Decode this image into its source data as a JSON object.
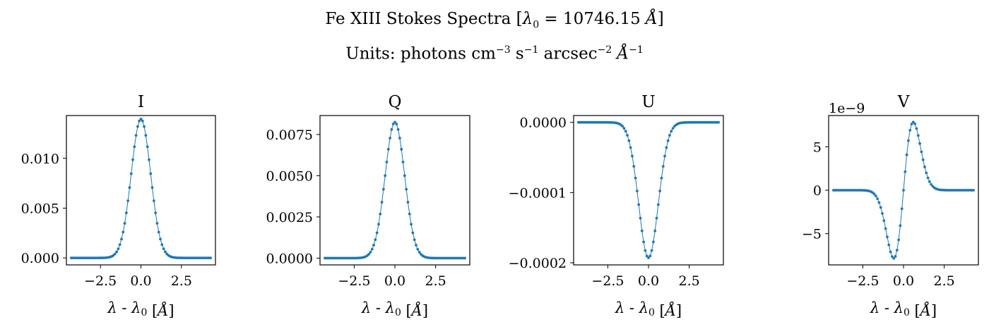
{
  "suptitle": {
    "line1_prefix": "Fe XIII Stokes Spectra  [",
    "lambda": "λ",
    "sub0": "0",
    "line1_mid": " = 10746.15 ",
    "angstrom": "Å",
    "line1_suffix": "]",
    "line2_prefix": "Units:  photons cm",
    "exp_m3": "−3",
    "s": " s",
    "exp_m1": "−1",
    "arcsec": " arcsec",
    "exp_m2": "−2",
    "ang2": " Å",
    "exp_m1b": "−1"
  },
  "colors": {
    "series": "#1f77b4",
    "axes": "#000000"
  },
  "chart_data": [
    {
      "type": "line",
      "title": "I",
      "xlabel": "λ - λ0 [Å]",
      "xlim": [
        -4.6,
        4.6
      ],
      "ylim": [
        -0.0007,
        0.0143
      ],
      "xticks": [
        -2.5,
        0.0,
        2.5
      ],
      "xtick_labels": [
        "−2.5",
        "0.0",
        "2.5"
      ],
      "yticks": [
        0.0,
        0.005,
        0.01
      ],
      "ytick_labels": [
        "0.000",
        "0.005",
        "0.010"
      ],
      "offset_text": "",
      "x_range": [
        -4.3,
        4.3
      ],
      "n_points": 87,
      "profile": {
        "shape": "gaussian",
        "amplitude": 0.01395,
        "center": 0.0,
        "sigma": 0.6
      }
    },
    {
      "type": "line",
      "title": "Q",
      "xlabel": "λ - λ0 [Å]",
      "xlim": [
        -4.6,
        4.6
      ],
      "ylim": [
        -0.00041,
        0.00865
      ],
      "xticks": [
        -2.5,
        0.0,
        2.5
      ],
      "xtick_labels": [
        "−2.5",
        "0.0",
        "2.5"
      ],
      "yticks": [
        0.0,
        0.0025,
        0.005,
        0.0075
      ],
      "ytick_labels": [
        "0.0000",
        "0.0025",
        "0.0050",
        "0.0075"
      ],
      "offset_text": "",
      "x_range": [
        -4.3,
        4.3
      ],
      "n_points": 87,
      "profile": {
        "shape": "gaussian",
        "amplitude": 0.00825,
        "center": 0.0,
        "sigma": 0.6
      }
    },
    {
      "type": "line",
      "title": "U",
      "xlabel": "λ - λ0 [Å]",
      "xlim": [
        -4.6,
        4.6
      ],
      "ylim": [
        -0.000203,
        9.7e-06
      ],
      "xticks": [
        -2.5,
        0.0,
        2.5
      ],
      "xtick_labels": [
        "−2.5",
        "0.0",
        "2.5"
      ],
      "yticks": [
        0.0,
        -0.0001,
        -0.0002
      ],
      "ytick_labels": [
        "0.0000",
        "−0.0001",
        "−0.0002"
      ],
      "offset_text": "",
      "x_range": [
        -4.3,
        4.3
      ],
      "n_points": 87,
      "profile": {
        "shape": "gaussian",
        "amplitude": -0.000193,
        "center": 0.0,
        "sigma": 0.6
      }
    },
    {
      "type": "line",
      "title": "V",
      "xlabel": "λ - λ0 [Å]",
      "xlim": [
        -4.6,
        4.6
      ],
      "ylim": [
        -8.6,
        8.6
      ],
      "xticks": [
        -2.5,
        0.0,
        2.5
      ],
      "xtick_labels": [
        "−2.5",
        "0.0",
        "2.5"
      ],
      "yticks": [
        -5,
        0,
        5
      ],
      "ytick_labels": [
        "−5",
        "0",
        "5"
      ],
      "offset_text": "1e−9",
      "x_range": [
        -4.3,
        4.3
      ],
      "n_points": 87,
      "profile": {
        "shape": "gaussian_derivative",
        "amplitude": 7.85,
        "center": 0.0,
        "sigma": 0.6
      }
    }
  ]
}
